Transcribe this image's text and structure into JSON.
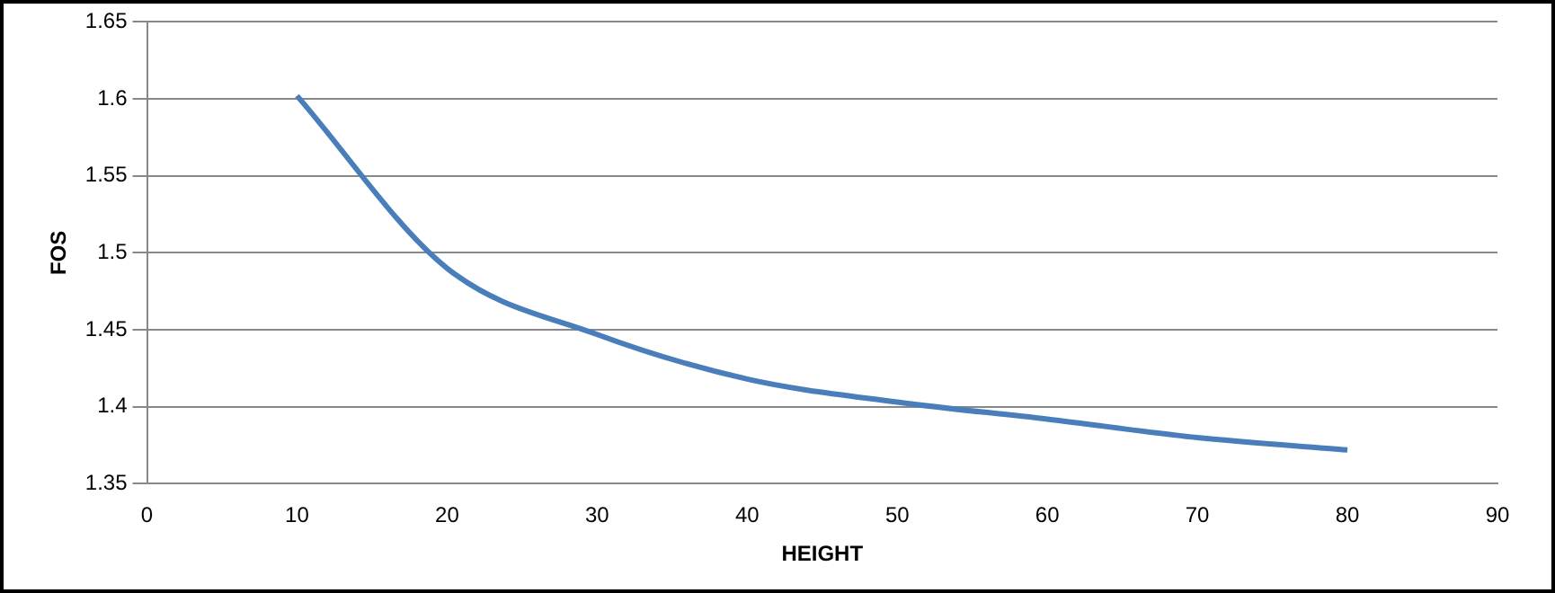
{
  "chart_data": {
    "type": "line",
    "xlabel": "HEIGHT",
    "ylabel": "FOS",
    "x": [
      10,
      20,
      30,
      40,
      50,
      60,
      70,
      80
    ],
    "series": [
      {
        "color": "#4a7ebb",
        "values": [
          1.602,
          1.49,
          1.447,
          1.418,
          1.403,
          1.392,
          1.38,
          1.372
        ]
      }
    ],
    "xlim": [
      0,
      90
    ],
    "xticks": [
      0,
      10,
      20,
      30,
      40,
      50,
      60,
      70,
      80,
      90
    ],
    "ylim": [
      1.35,
      1.65
    ],
    "yticks": [
      1.35,
      1.4,
      1.45,
      1.5,
      1.55,
      1.6,
      1.65
    ],
    "grid": "y",
    "legend": false,
    "marker": "none",
    "line_style": "solid"
  }
}
